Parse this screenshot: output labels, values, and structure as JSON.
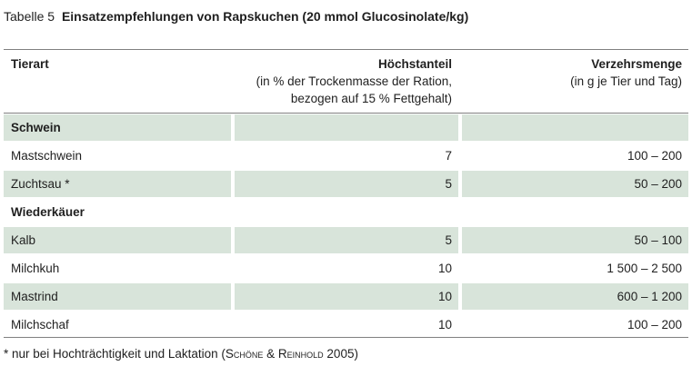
{
  "caption": {
    "number": "Tabelle 5",
    "title": "Einsatzempfehlungen von Rapskuchen (20 mmol Glucosinolate/kg)"
  },
  "header": {
    "col1": "Tierart",
    "col2_title": "Höchstanteil",
    "col2_sub1": "(in % der Trockenmasse der Ration,",
    "col2_sub2": "bezogen auf 15 % Fettgehalt)",
    "col3_title": "Verzehrsmenge",
    "col3_sub1": "(in g je Tier und Tag)"
  },
  "rows": [
    {
      "label": "Schwein",
      "share": "",
      "amount": "",
      "group": true,
      "shaded": true
    },
    {
      "label": "Mastschwein",
      "share": "7",
      "amount": "100 – 200",
      "group": false,
      "shaded": false
    },
    {
      "label": "Zuchtsau *",
      "share": "5",
      "amount": "50 – 200",
      "group": false,
      "shaded": true
    },
    {
      "label": "Wiederkäuer",
      "share": "",
      "amount": "",
      "group": true,
      "shaded": false
    },
    {
      "label": "Kalb",
      "share": "5",
      "amount": "50 – 100",
      "group": false,
      "shaded": true
    },
    {
      "label": "Milchkuh",
      "share": "10",
      "amount": "1 500 – 2 500",
      "group": false,
      "shaded": false
    },
    {
      "label": "Mastrind",
      "share": "10",
      "amount": "600 – 1 200",
      "group": false,
      "shaded": true
    },
    {
      "label": "Milchschaf",
      "share": "10",
      "amount": "100 – 200",
      "group": false,
      "shaded": false
    }
  ],
  "footnote": {
    "prefix": "* nur bei Hochträchtigkeit und Laktation (",
    "authors": "Schöne & Reinhold",
    "suffix": " 2005)"
  }
}
